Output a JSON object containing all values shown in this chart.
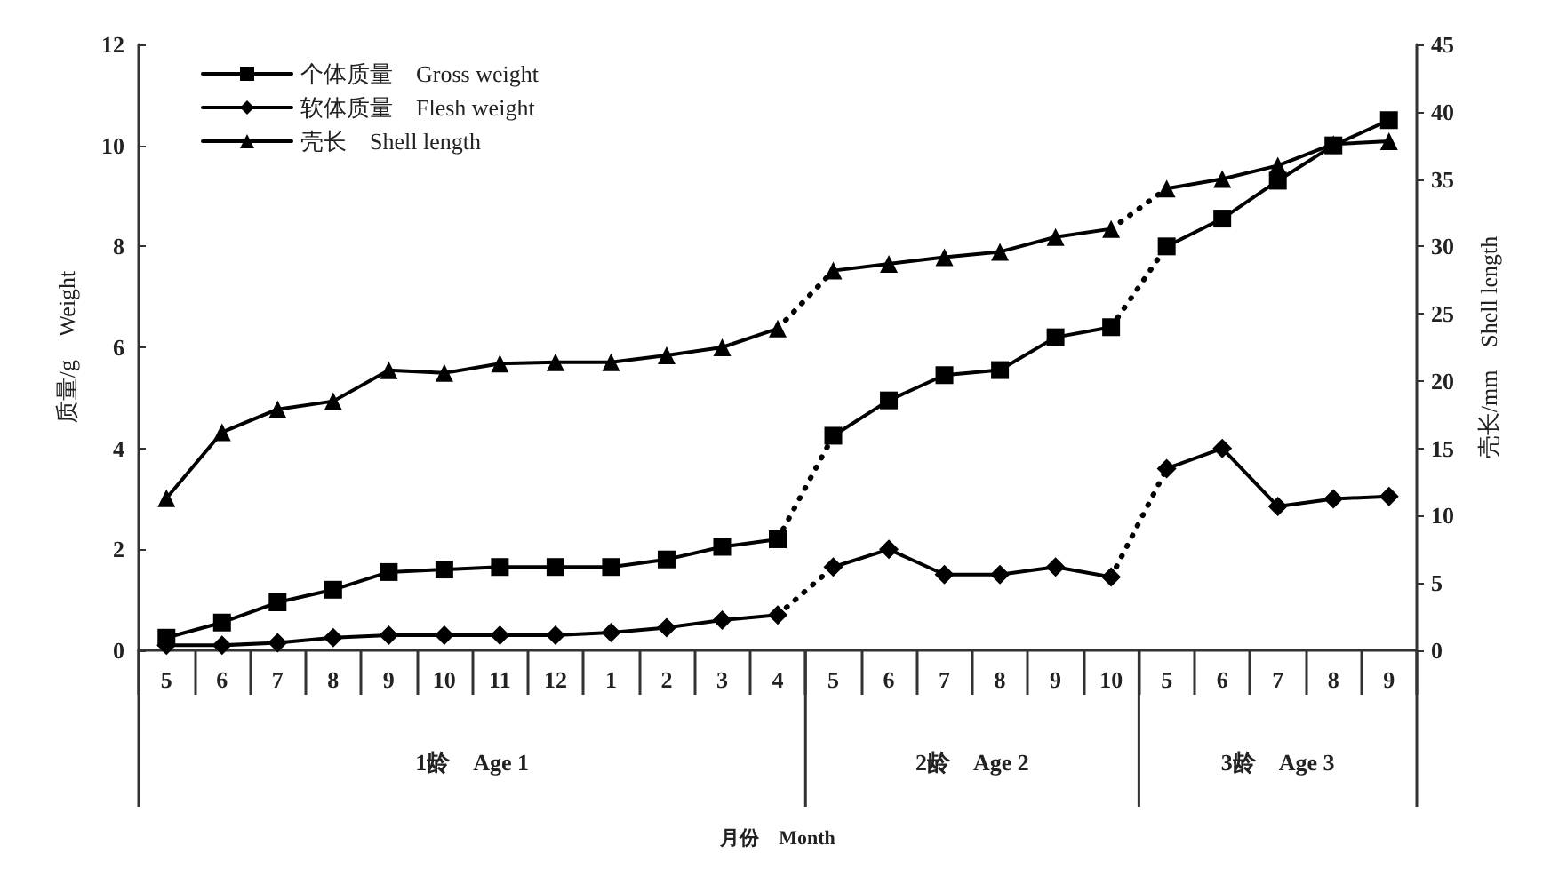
{
  "chart_data": {
    "type": "line",
    "ylabel": "质量/g　Weight",
    "y2label": "壳长/mm　Shell length",
    "categories": [
      "5",
      "6",
      "7",
      "8",
      "9",
      "10",
      "11",
      "12",
      "1",
      "2",
      "3",
      "4",
      "5",
      "6",
      "7",
      "8",
      "9",
      "10",
      "5",
      "6",
      "7",
      "8",
      "9"
    ],
    "series": [
      {
        "name": "个体质量　Gross weight",
        "color": "#000000",
        "marker": "square",
        "line_style": "solid",
        "values": [
          0.25,
          0.55,
          0.95,
          1.2,
          1.55,
          1.6,
          1.65,
          1.65,
          1.65,
          1.8,
          2.05,
          2.2,
          4.25,
          4.95,
          5.45,
          5.55,
          6.2,
          6.4,
          8.0,
          8.55,
          9.3,
          10.0,
          10.5
        ]
      },
      {
        "name": "软体质量　Flesh weight",
        "color": "#000000",
        "marker": "diamond",
        "line_style": "solid",
        "values": [
          0.1,
          0.1,
          0.15,
          0.25,
          0.3,
          0.3,
          0.3,
          0.3,
          0.35,
          0.45,
          0.6,
          0.7,
          1.65,
          2.0,
          1.5,
          1.5,
          1.65,
          1.45,
          3.6,
          4.0,
          2.85,
          3.0,
          3.05
        ]
      },
      {
        "name": "壳长　Shell length",
        "color": "#000000",
        "marker": "triangle",
        "line_style": "solid",
        "axis": "y2",
        "values": [
          11.3,
          16.2,
          17.9,
          18.5,
          20.8,
          20.6,
          21.3,
          21.4,
          21.4,
          21.9,
          22.5,
          23.9,
          28.2,
          28.7,
          29.2,
          29.6,
          30.7,
          31.3,
          34.3,
          35.0,
          36.0,
          37.6,
          37.8
        ]
      },
      {
        "color": "#000000",
        "line_style": "dotted",
        "values": [
          null,
          null,
          null,
          null,
          null,
          null,
          null,
          null,
          null,
          null,
          null,
          2.2,
          4.25,
          null,
          null,
          null,
          null,
          6.4,
          8.0,
          null,
          null,
          null,
          null
        ]
      },
      {
        "color": "#000000",
        "line_style": "dotted",
        "values": [
          null,
          null,
          null,
          null,
          null,
          null,
          null,
          null,
          null,
          null,
          null,
          0.7,
          1.65,
          null,
          null,
          null,
          null,
          1.45,
          3.6,
          null,
          null,
          null,
          null
        ]
      },
      {
        "color": "#000000",
        "line_style": "dotted",
        "axis": "y2",
        "values": [
          null,
          null,
          null,
          null,
          null,
          null,
          null,
          null,
          null,
          null,
          null,
          23.9,
          28.2,
          null,
          null,
          null,
          null,
          31.3,
          34.3,
          null,
          null,
          null,
          null
        ]
      }
    ],
    "ylim": [
      0,
      12
    ],
    "yticks": [
      0,
      2,
      4,
      6,
      8,
      10,
      12
    ],
    "y2lim": [
      0,
      45
    ],
    "y2ticks": [
      0,
      5,
      10,
      15,
      20,
      25,
      30,
      35,
      40,
      45
    ],
    "legend": "top left",
    "grid": false,
    "annotations": [
      "1龄　Age 1",
      "2龄　Age 2",
      "3龄　Age 3",
      "月份　Month"
    ]
  }
}
